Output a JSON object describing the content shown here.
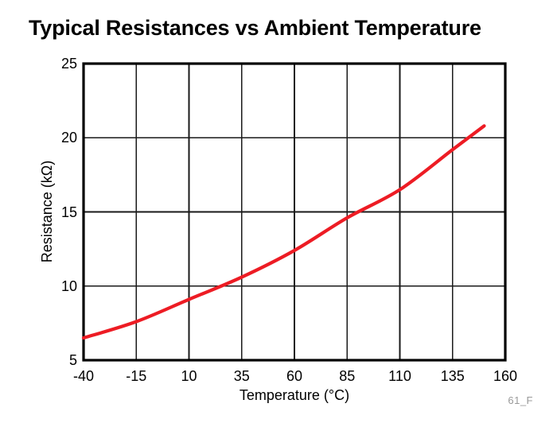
{
  "watermark": "61_F",
  "colors": {
    "curve": "#ED1C24",
    "axis": "#000000",
    "grid": "#1a1a1a",
    "text": "#000000",
    "watermark": "#999999",
    "background": "#ffffff"
  },
  "chart_data": {
    "type": "line",
    "title": "Typical Resistances vs Ambient Temperature",
    "xlabel": "Temperature (°C)",
    "ylabel": "Resistance (kΩ)",
    "xlim": [
      -40,
      160
    ],
    "ylim": [
      5,
      25
    ],
    "x_ticks": [
      -40,
      -15,
      10,
      35,
      60,
      85,
      110,
      135,
      160
    ],
    "y_ticks": [
      5,
      10,
      15,
      20,
      25
    ],
    "grid": true,
    "legend": "none",
    "series": [
      {
        "name": "Typical Resistance",
        "color": "#ED1C24",
        "x": [
          -40,
          -15,
          10,
          35,
          60,
          85,
          110,
          135,
          150
        ],
        "y": [
          6.5,
          7.6,
          9.1,
          10.6,
          12.4,
          14.6,
          16.5,
          19.2,
          20.8
        ]
      }
    ]
  }
}
